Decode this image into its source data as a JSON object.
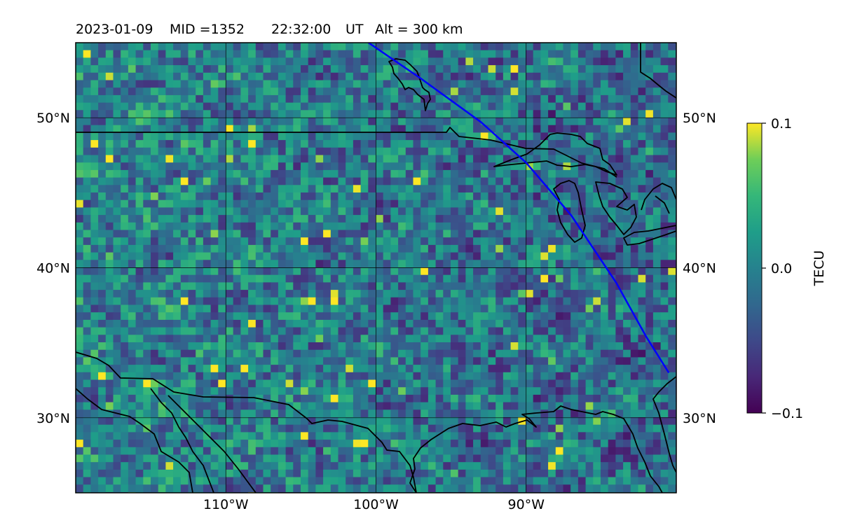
{
  "header": {
    "date": "2023-01-09",
    "mid": "MID =1352",
    "time": "22:32:00",
    "time_unit": "UT",
    "altitude": "Alt = 300 km"
  },
  "map": {
    "lon_range": [
      -120,
      -80
    ],
    "lat_range": [
      25,
      55
    ],
    "lat_ticks": [
      {
        "value": 30,
        "label": "30°N"
      },
      {
        "value": 40,
        "label": "40°N"
      },
      {
        "value": 50,
        "label": "50°N"
      }
    ],
    "lon_ticks": [
      {
        "value": -110,
        "label": "110°W"
      },
      {
        "value": -100,
        "label": "100°W"
      },
      {
        "value": -90,
        "label": "90°W"
      }
    ],
    "grid": true,
    "colormap": "viridis",
    "track_color": "#0000ff",
    "track": [
      [
        -100.5,
        55
      ],
      [
        -97,
        52.6
      ],
      [
        -93,
        49.7
      ],
      [
        -90,
        47
      ],
      [
        -87,
        43.5
      ],
      [
        -84,
        39
      ],
      [
        -82,
        35.4
      ],
      [
        -80.5,
        33
      ]
    ]
  },
  "colorbar": {
    "label": "TECU",
    "ticks": [
      {
        "value": 0.1,
        "label": "0.1"
      },
      {
        "value": 0.0,
        "label": "0.0"
      },
      {
        "value": -0.1,
        "label": "−0.1"
      }
    ],
    "vmin": -0.1,
    "vmax": 0.1,
    "placement": "right"
  }
}
